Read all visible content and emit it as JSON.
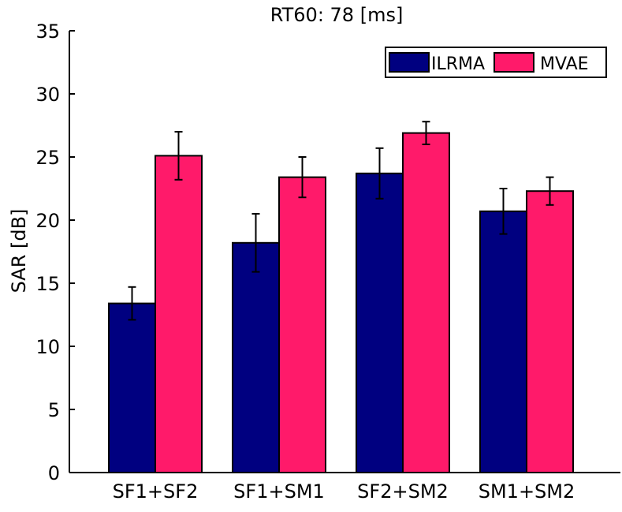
{
  "chart_data": {
    "type": "bar",
    "title": "RT60: 78 [ms]",
    "xlabel": "",
    "ylabel": "SAR [dB]",
    "ylim": [
      0,
      35
    ],
    "yticks": [
      0,
      5,
      10,
      15,
      20,
      25,
      30,
      35
    ],
    "grid": false,
    "legend_position": "top-right",
    "categories": [
      "SF1+SF2",
      "SF1+SM1",
      "SF2+SM2",
      "SM1+SM2"
    ],
    "series": [
      {
        "name": "ILRMA",
        "color": "#000080",
        "values": [
          13.4,
          18.2,
          23.7,
          20.7
        ],
        "error_low": [
          12.1,
          15.9,
          21.7,
          18.9
        ],
        "error_high": [
          14.7,
          20.5,
          25.7,
          22.5
        ]
      },
      {
        "name": "MVAE",
        "color": "#ff1a6a",
        "values": [
          25.1,
          23.4,
          26.9,
          22.3
        ],
        "error_low": [
          23.2,
          21.8,
          26.0,
          21.2
        ],
        "error_high": [
          27.0,
          25.0,
          27.8,
          23.4
        ]
      }
    ]
  }
}
